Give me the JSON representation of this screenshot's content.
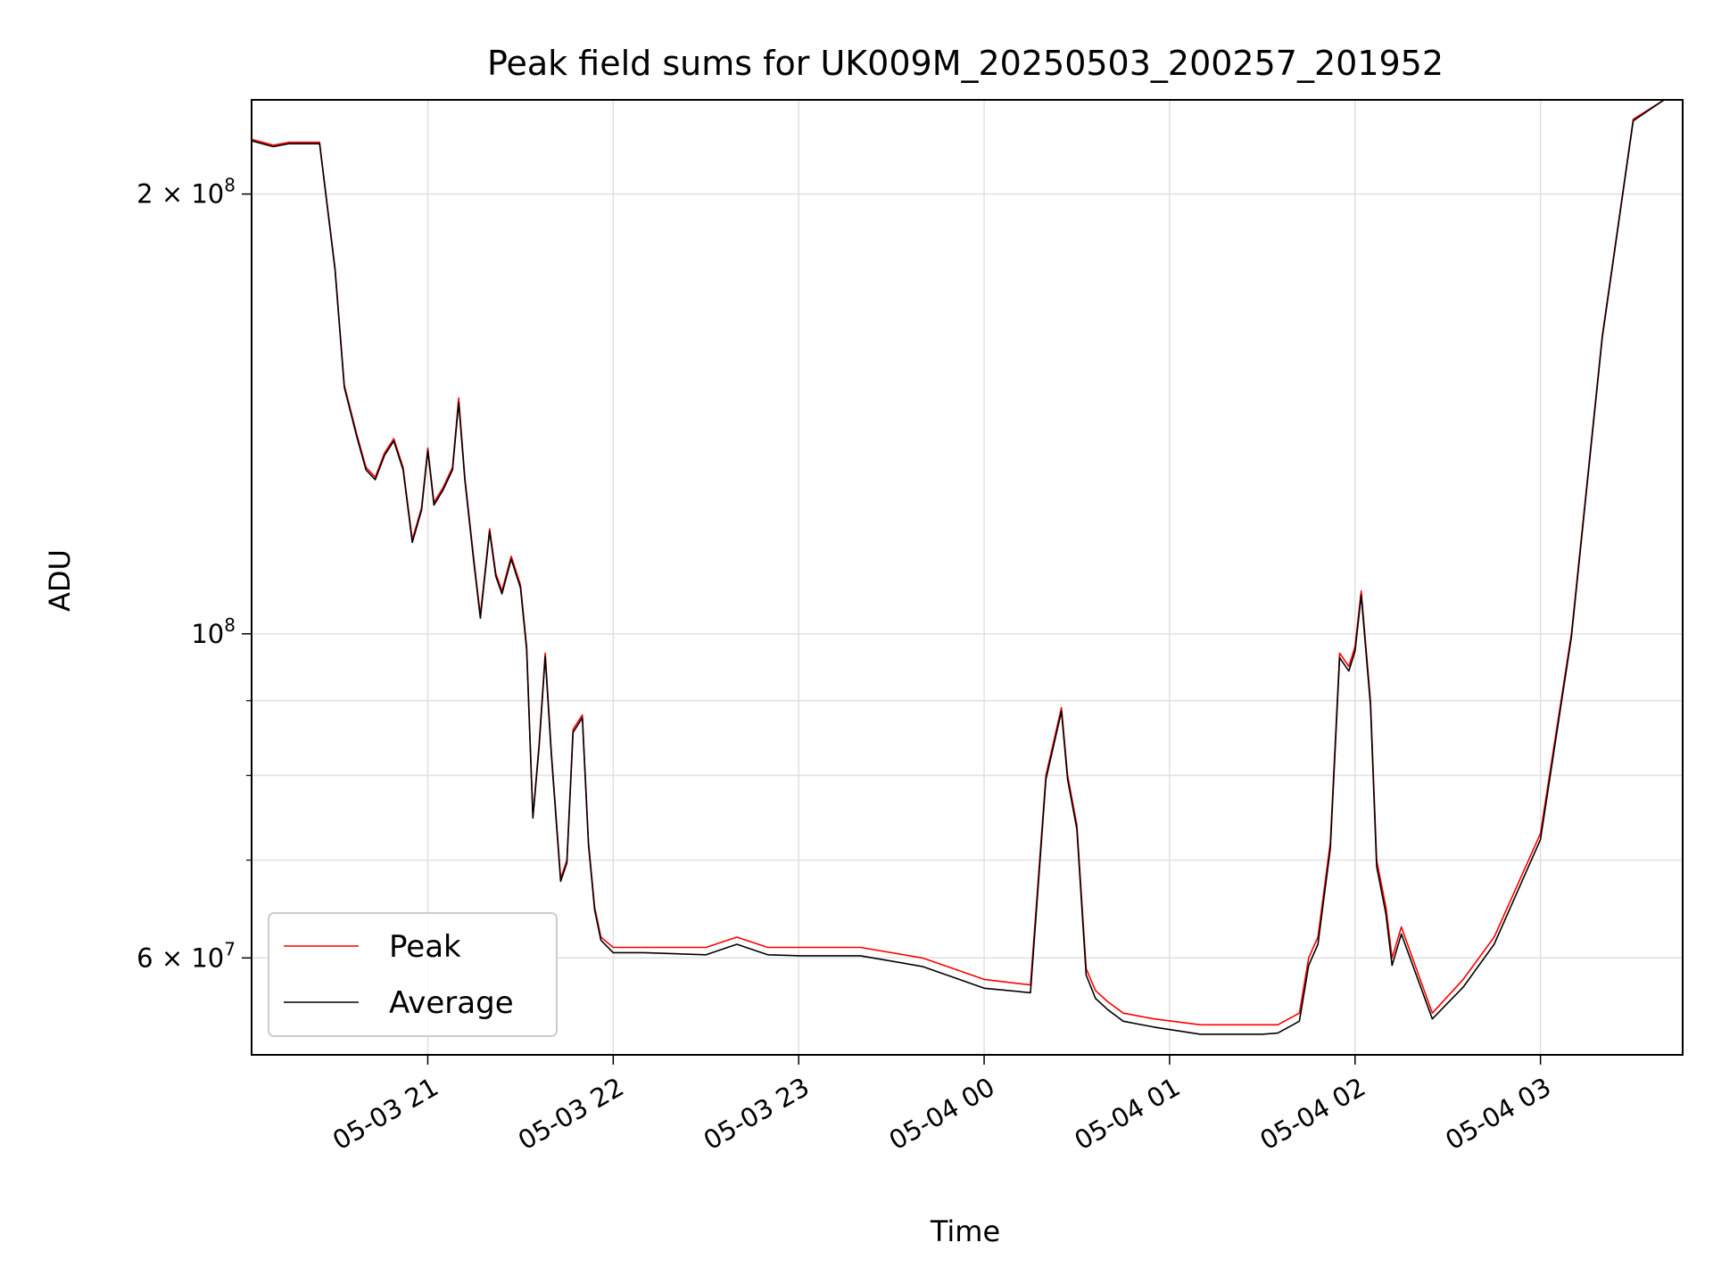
{
  "chart_data": {
    "type": "line",
    "title": "Peak field sums for UK009M_20250503_200257_201952",
    "xlabel": "Time",
    "ylabel": "ADU",
    "yscale": "log",
    "ylim": [
      51500000,
      232000000
    ],
    "xlim": [
      "05-03 20:03",
      "05-04 03:46"
    ],
    "grid": true,
    "legend_position": "lower-left",
    "x_tick_labels": [
      "05-03 21",
      "05-03 22",
      "05-03 23",
      "05-04 00",
      "05-04 01",
      "05-04 02",
      "05-04 03"
    ],
    "y_tick_labels": [
      {
        "value": 200000000,
        "base": "2",
        "times": " × ",
        "mantissa": "10",
        "exp": "8"
      },
      {
        "value": 100000000,
        "base": "",
        "times": "",
        "mantissa": "10",
        "exp": "8"
      },
      {
        "value": 60000000,
        "base": "6",
        "times": " × ",
        "mantissa": "10",
        "exp": "7"
      }
    ],
    "y_minor_ticks": [
      70000000,
      80000000,
      90000000
    ],
    "series": [
      {
        "name": "Peak",
        "color": "#ff0000",
        "x": [
          "05-03 20:03",
          "05-03 20:10",
          "05-03 20:15",
          "05-03 20:25",
          "05-03 20:30",
          "05-03 20:33",
          "05-03 20:37",
          "05-03 20:40",
          "05-03 20:43",
          "05-03 20:46",
          "05-03 20:49",
          "05-03 20:52",
          "05-03 20:55",
          "05-03 20:58",
          "05-03 21:00",
          "05-03 21:02",
          "05-03 21:05",
          "05-03 21:08",
          "05-03 21:10",
          "05-03 21:12",
          "05-03 21:15",
          "05-03 21:17",
          "05-03 21:20",
          "05-03 21:22",
          "05-03 21:24",
          "05-03 21:27",
          "05-03 21:30",
          "05-03 21:32",
          "05-03 21:34",
          "05-03 21:36",
          "05-03 21:38",
          "05-03 21:40",
          "05-03 21:43",
          "05-03 21:45",
          "05-03 21:47",
          "05-03 21:50",
          "05-03 21:52",
          "05-03 21:54",
          "05-03 21:56",
          "05-03 22:00",
          "05-03 22:10",
          "05-03 22:30",
          "05-03 22:40",
          "05-03 22:50",
          "05-03 23:00",
          "05-03 23:20",
          "05-03 23:40",
          "05-03 23:50",
          "05-04 00:00",
          "05-04 00:15",
          "05-04 00:20",
          "05-04 00:25",
          "05-04 00:27",
          "05-04 00:30",
          "05-04 00:33",
          "05-04 00:36",
          "05-04 00:40",
          "05-04 00:45",
          "05-04 00:55",
          "05-04 01:10",
          "05-04 01:30",
          "05-04 01:35",
          "05-04 01:42",
          "05-04 01:45",
          "05-04 01:48",
          "05-04 01:52",
          "05-04 01:55",
          "05-04 01:58",
          "05-04 02:00",
          "05-04 02:02",
          "05-04 02:05",
          "05-04 02:07",
          "05-04 02:10",
          "05-04 02:12",
          "05-04 02:15",
          "05-04 02:25",
          "05-04 02:35",
          "05-04 02:45",
          "05-04 03:00",
          "05-04 03:10",
          "05-04 03:20",
          "05-04 03:30",
          "05-04 03:40",
          "05-04 03:46"
        ],
        "y": [
          218000000,
          216000000,
          217000000,
          217000000,
          178000000,
          148000000,
          137000000,
          130000000,
          128000000,
          133000000,
          136000000,
          130000000,
          116000000,
          122000000,
          134000000,
          123000000,
          126000000,
          130000000,
          145000000,
          128000000,
          112000000,
          103000000,
          118000000,
          110000000,
          107000000,
          113000000,
          108000000,
          98000000,
          75000000,
          84000000,
          97000000,
          83000000,
          68000000,
          70000000,
          86000000,
          88000000,
          72000000,
          65000000,
          62000000,
          61000000,
          61000000,
          61000000,
          62000000,
          61000000,
          61000000,
          61000000,
          60000000,
          59000000,
          58000000,
          57500000,
          80000000,
          89000000,
          80000000,
          74000000,
          59000000,
          57000000,
          56000000,
          55000000,
          54500000,
          54000000,
          54000000,
          54000000,
          55000000,
          60000000,
          62000000,
          72000000,
          97000000,
          95000000,
          98000000,
          107000000,
          90000000,
          70000000,
          65000000,
          60000000,
          63000000,
          55000000,
          58000000,
          62000000,
          73000000,
          100000000,
          160000000,
          225000000,
          232000000,
          232000000
        ]
      },
      {
        "name": "Average",
        "color": "#000000",
        "x": [
          "05-03 20:03",
          "05-03 20:10",
          "05-03 20:15",
          "05-03 20:25",
          "05-03 20:30",
          "05-03 20:33",
          "05-03 20:37",
          "05-03 20:40",
          "05-03 20:43",
          "05-03 20:46",
          "05-03 20:49",
          "05-03 20:52",
          "05-03 20:55",
          "05-03 20:58",
          "05-03 21:00",
          "05-03 21:02",
          "05-03 21:05",
          "05-03 21:08",
          "05-03 21:10",
          "05-03 21:12",
          "05-03 21:15",
          "05-03 21:17",
          "05-03 21:20",
          "05-03 21:22",
          "05-03 21:24",
          "05-03 21:27",
          "05-03 21:30",
          "05-03 21:32",
          "05-03 21:34",
          "05-03 21:36",
          "05-03 21:38",
          "05-03 21:40",
          "05-03 21:43",
          "05-03 21:45",
          "05-03 21:47",
          "05-03 21:50",
          "05-03 21:52",
          "05-03 21:54",
          "05-03 21:56",
          "05-03 22:00",
          "05-03 22:10",
          "05-03 22:30",
          "05-03 22:40",
          "05-03 22:50",
          "05-03 23:00",
          "05-03 23:20",
          "05-03 23:40",
          "05-03 23:50",
          "05-04 00:00",
          "05-04 00:15",
          "05-04 00:20",
          "05-04 00:25",
          "05-04 00:27",
          "05-04 00:30",
          "05-04 00:33",
          "05-04 00:36",
          "05-04 00:40",
          "05-04 00:45",
          "05-04 00:55",
          "05-04 01:10",
          "05-04 01:30",
          "05-04 01:35",
          "05-04 01:42",
          "05-04 01:45",
          "05-04 01:48",
          "05-04 01:52",
          "05-04 01:55",
          "05-04 01:58",
          "05-04 02:00",
          "05-04 02:02",
          "05-04 02:05",
          "05-04 02:07",
          "05-04 02:10",
          "05-04 02:12",
          "05-04 02:15",
          "05-04 02:25",
          "05-04 02:35",
          "05-04 02:45",
          "05-04 03:00",
          "05-04 03:10",
          "05-04 03:20",
          "05-04 03:30",
          "05-04 03:40",
          "05-04 03:46"
        ],
        "y": [
          217500000,
          215500000,
          216500000,
          216500000,
          177500000,
          147500000,
          136500000,
          129500000,
          127500000,
          132500000,
          135500000,
          129500000,
          115500000,
          121500000,
          133500000,
          122500000,
          125500000,
          129500000,
          144000000,
          127500000,
          111500000,
          102500000,
          117500000,
          109500000,
          106500000,
          112500000,
          107500000,
          97500000,
          74800000,
          83600000,
          96500000,
          82600000,
          67700000,
          69700000,
          85600000,
          87600000,
          71700000,
          64700000,
          61700000,
          60500000,
          60500000,
          60300000,
          61300000,
          60300000,
          60200000,
          60200000,
          59200000,
          58200000,
          57200000,
          56800000,
          79500000,
          88500000,
          79500000,
          73500000,
          58400000,
          56300000,
          55300000,
          54300000,
          53800000,
          53200000,
          53200000,
          53300000,
          54300000,
          59300000,
          61300000,
          71300000,
          96300000,
          94300000,
          97300000,
          106300000,
          89300000,
          69300000,
          64300000,
          59300000,
          62300000,
          54500000,
          57300000,
          61300000,
          72300000,
          99500000,
          159500000,
          224500000,
          232000000,
          232000000
        ]
      }
    ]
  }
}
